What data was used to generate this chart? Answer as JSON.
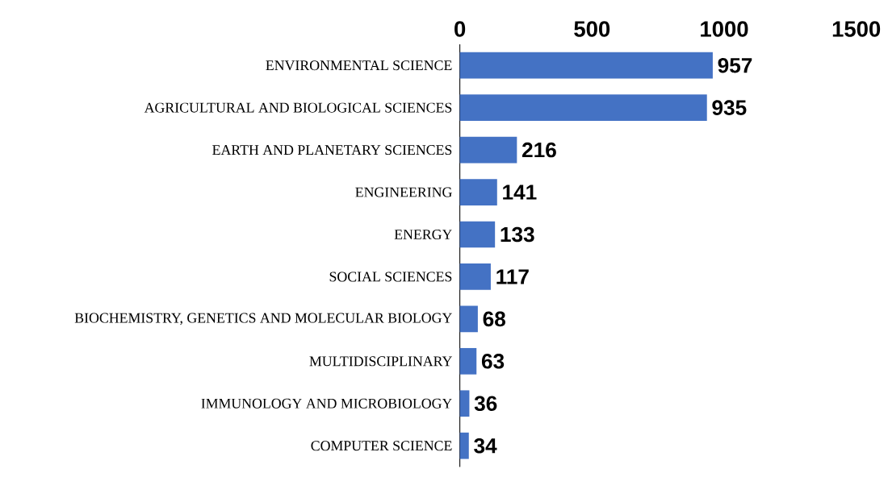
{
  "chart_data": {
    "type": "bar",
    "orientation": "horizontal",
    "categories": [
      "ENVIRONMENTAL SCIENCE",
      "AGRICULTURAL AND BIOLOGICAL SCIENCES",
      "EARTH AND PLANETARY SCIENCES",
      "ENGINEERING",
      "ENERGY",
      "SOCIAL SCIENCES",
      "BIOCHEMISTRY, GENETICS AND MOLECULAR BIOLOGY",
      "MULTIDISCIPLINARY",
      "IMMUNOLOGY AND MICROBIOLOGY",
      "COMPUTER SCIENCE"
    ],
    "values": [
      957,
      935,
      216,
      141,
      133,
      117,
      68,
      63,
      36,
      34
    ],
    "color": "#4472c4",
    "xlim": [
      0,
      1500
    ],
    "xticks": [
      0,
      500,
      1000,
      1500
    ],
    "data_labels": true,
    "grid": false
  }
}
